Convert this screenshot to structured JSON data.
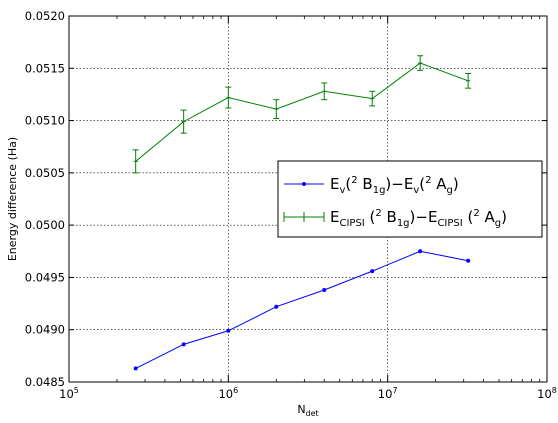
{
  "chart_data": {
    "type": "line",
    "title": "",
    "xlabel": {
      "base": "N",
      "sub": "det"
    },
    "ylabel": "Energy difference (Ha)",
    "xscale": "log",
    "xlim": [
      100000,
      100000000
    ],
    "ylim": [
      0.0485,
      0.052
    ],
    "grid": true,
    "legend_position": "center-right",
    "x_ticks": [
      {
        "base": "10",
        "exp": "5",
        "value": 100000
      },
      {
        "base": "10",
        "exp": "6",
        "value": 1000000
      },
      {
        "base": "10",
        "exp": "7",
        "value": 10000000
      },
      {
        "base": "10",
        "exp": "8",
        "value": 100000000
      }
    ],
    "y_ticks": [
      {
        "label": "0.0485",
        "value": 0.0485
      },
      {
        "label": "0.0490",
        "value": 0.049
      },
      {
        "label": "0.0495",
        "value": 0.0495
      },
      {
        "label": "0.0500",
        "value": 0.05
      },
      {
        "label": "0.0505",
        "value": 0.0505
      },
      {
        "label": "0.0510",
        "value": 0.051
      },
      {
        "label": "0.0515",
        "value": 0.0515
      },
      {
        "label": "0.0520",
        "value": 0.052
      }
    ],
    "series": [
      {
        "legend": {
          "sub": "v"
        },
        "color": "#0000ff",
        "marker": "dot",
        "x": [
          262144,
          524288,
          1000000,
          2000000,
          4000000,
          8000000,
          16000000,
          32000000
        ],
        "y": [
          0.04863,
          0.04886,
          0.04899,
          0.04922,
          0.04938,
          0.04956,
          0.04975,
          0.04966
        ]
      },
      {
        "legend": {
          "sub": "CIPSI"
        },
        "color": "#008000",
        "marker": "errorbar",
        "x": [
          262144,
          524288,
          1000000,
          2000000,
          4000000,
          8000000,
          16000000,
          32000000
        ],
        "y": [
          0.05061,
          0.05099,
          0.05122,
          0.05111,
          0.05128,
          0.05121,
          0.05155,
          0.05138
        ],
        "err": [
          0.00011,
          0.00011,
          0.0001,
          9e-05,
          8e-05,
          7e-05,
          7e-05,
          7e-05
        ]
      }
    ]
  }
}
